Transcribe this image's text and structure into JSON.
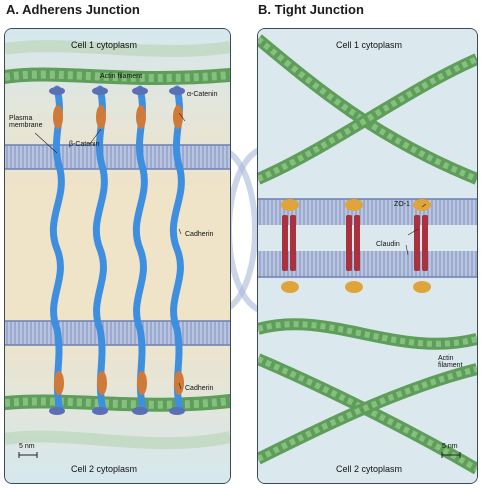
{
  "panel_a": {
    "title": "A. Adherens Junction",
    "cell_top": "Cell 1 cytoplasm",
    "cell_bottom": "Cell 2 cytoplasm",
    "actin": "Actin filament",
    "alpha_catenin": "α-Catenin",
    "beta_catenin": "β-Catenin",
    "plasma_membrane": "Plasma\nmembrane",
    "cadherin": "Cadherin",
    "cadherin_2": "Cadherin",
    "scale": "5 nm"
  },
  "panel_b": {
    "title": "B. Tight Junction",
    "cell_top": "Cell 1 cytoplasm",
    "cell_bottom": "Cell 2 cytoplasm",
    "zo1": "ZO-1",
    "claudin": "Claudin",
    "actin": "Actin\nfilament",
    "scale": "5 nm"
  },
  "colors": {
    "actin": "#6fae6a",
    "membrane": "#8d9fc4",
    "cadherin": "#3f8fe0",
    "catenin_beta": "#d07a3a",
    "catenin_alpha": "#5b6fb5",
    "claudin": "#a8323d",
    "zo1": "#e0a53a",
    "background": "#dbe9ef"
  }
}
